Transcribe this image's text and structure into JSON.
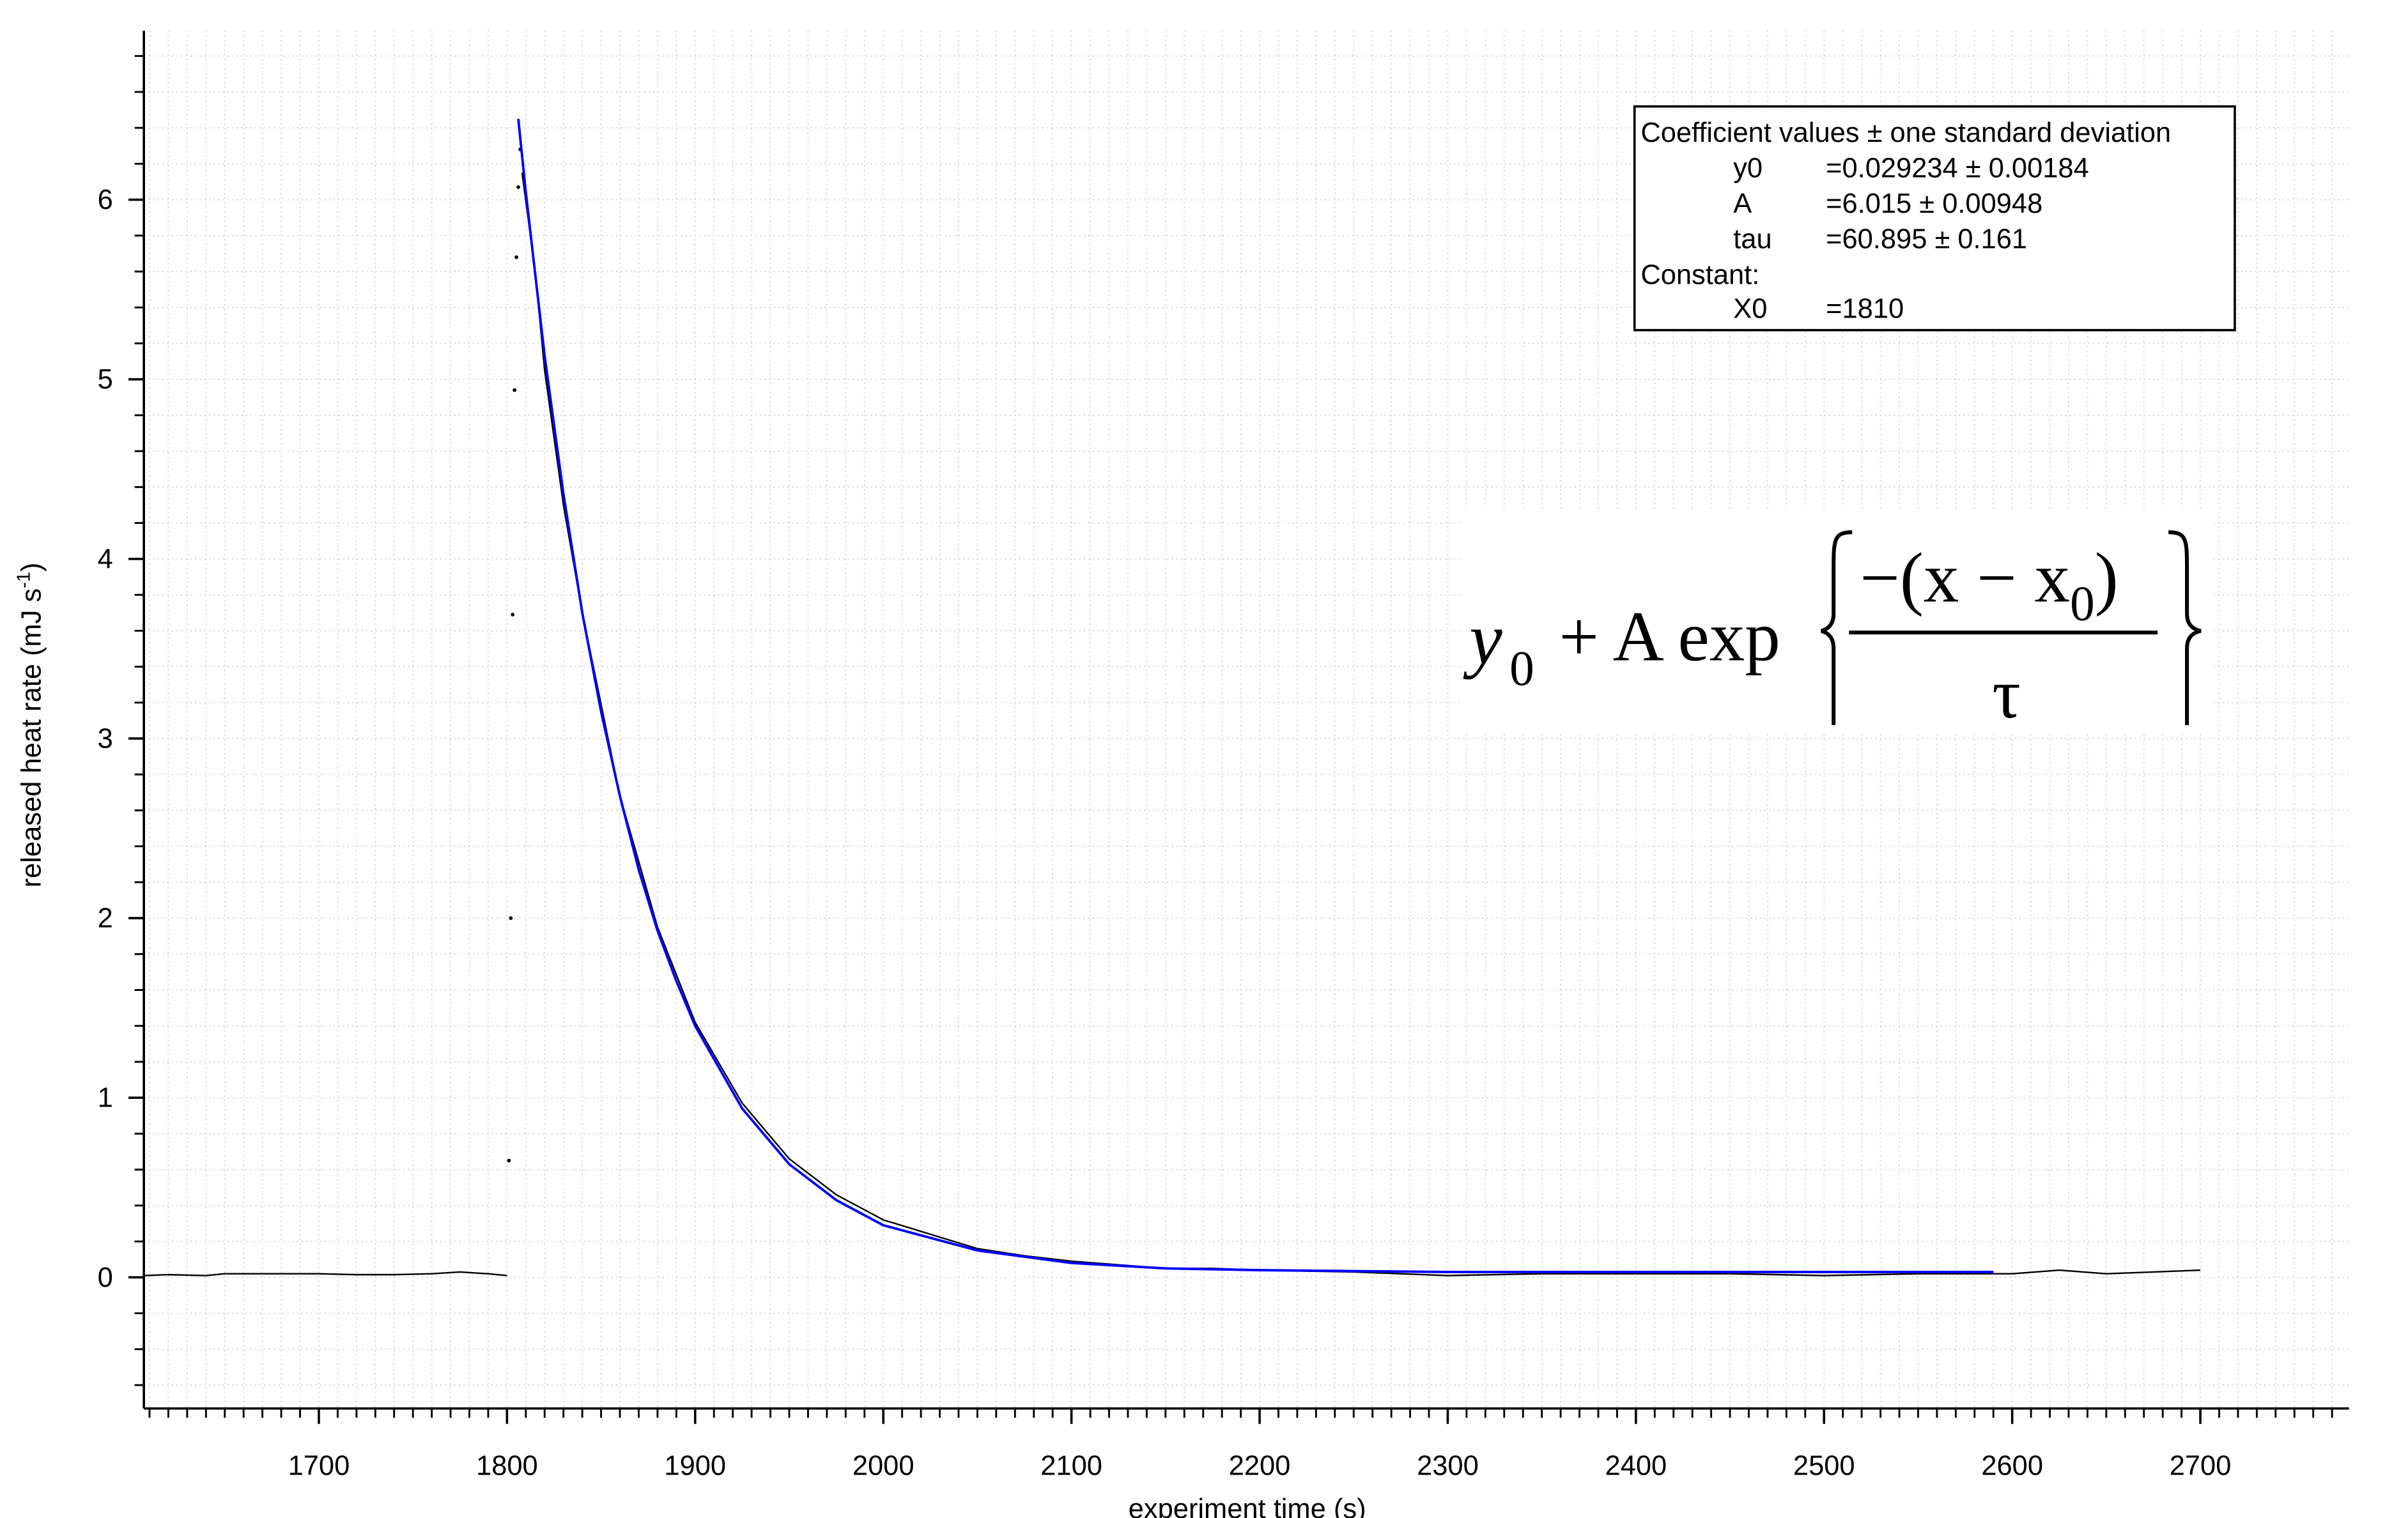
{
  "chart_data": {
    "type": "line",
    "xlabel": "experiment time (s)",
    "ylabel": {
      "text": "released heat rate (mJ s",
      "sup": "-1",
      "close": ")"
    },
    "xlim": [
      1607,
      2779
    ],
    "ylim": [
      -0.73,
      6.94
    ],
    "xticks": [
      1700,
      1800,
      1900,
      2000,
      2100,
      2200,
      2300,
      2400,
      2500,
      2600,
      2700
    ],
    "yticks": [
      0,
      1,
      2,
      3,
      4,
      5,
      6
    ],
    "xminorticks": [
      1610,
      1620,
      1630,
      1640,
      1650,
      1660,
      1670,
      1680,
      1690,
      1700,
      1710,
      1720,
      1730,
      1740,
      1750,
      1760,
      1770,
      1780,
      1790,
      1800,
      1810,
      1820,
      1830,
      1840,
      1850,
      1860,
      1870,
      1880,
      1890,
      1900,
      1910,
      1920,
      1930,
      1940,
      1950,
      1960,
      1970,
      1980,
      1990,
      2000,
      2010,
      2020,
      2030,
      2040,
      2050,
      2060,
      2070,
      2080,
      2090,
      2100,
      2110,
      2120,
      2130,
      2140,
      2150,
      2160,
      2170,
      2180,
      2190,
      2200,
      2210,
      2220,
      2230,
      2240,
      2250,
      2260,
      2270,
      2280,
      2290,
      2300,
      2310,
      2320,
      2330,
      2340,
      2350,
      2360,
      2370,
      2380,
      2390,
      2400,
      2410,
      2420,
      2430,
      2440,
      2450,
      2460,
      2470,
      2480,
      2490,
      2500,
      2510,
      2520,
      2530,
      2540,
      2550,
      2560,
      2570,
      2580,
      2590,
      2600,
      2610,
      2620,
      2630,
      2640,
      2650,
      2660,
      2670,
      2680,
      2690,
      2700,
      2710,
      2720,
      2730,
      2740,
      2750,
      2760,
      2770
    ],
    "yminorticks": [
      -0.6,
      -0.4,
      -0.2,
      0,
      0.2,
      0.4,
      0.6,
      0.8,
      1,
      1.2,
      1.4,
      1.6,
      1.8,
      2,
      2.2,
      2.4,
      2.6,
      2.8,
      3,
      3.2,
      3.4,
      3.6,
      3.8,
      4,
      4.2,
      4.4,
      4.6,
      4.8,
      5,
      5.2,
      5.4,
      5.6,
      5.8,
      6,
      6.2,
      6.4,
      6.6,
      6.8
    ],
    "grid": true,
    "series": [
      {
        "style": "line",
        "color": "#000000",
        "x": [
          1607,
          1620,
          1640,
          1650,
          1660,
          1680,
          1700,
          1720,
          1740,
          1760,
          1775,
          1790,
          1800
        ],
        "values": [
          0.01,
          0.015,
          0.01,
          0.02,
          0.02,
          0.02,
          0.02,
          0.015,
          0.015,
          0.02,
          0.03,
          0.02,
          0.01
        ]
      },
      {
        "style": "dots",
        "color": "#000000",
        "x": [
          1801,
          1802,
          1803,
          1804,
          1805,
          1806,
          1807
        ],
        "values": [
          0.65,
          2.0,
          3.69,
          4.94,
          5.68,
          6.07,
          6.28
        ]
      },
      {
        "style": "line",
        "color": "#000000",
        "x": [
          1808,
          1815,
          1820,
          1830,
          1840,
          1860,
          1880,
          1900,
          1925,
          1950,
          1975,
          2000,
          2025,
          2050,
          2075,
          2100,
          2125,
          2150,
          2175,
          2200,
          2250,
          2300,
          2350,
          2400,
          2450,
          2500,
          2550,
          2600,
          2625,
          2650,
          2675,
          2700
        ],
        "values": [
          6.15,
          5.6,
          5.05,
          4.3,
          3.7,
          2.68,
          1.95,
          1.42,
          0.97,
          0.66,
          0.46,
          0.32,
          0.24,
          0.16,
          0.12,
          0.09,
          0.07,
          0.05,
          0.05,
          0.04,
          0.03,
          0.01,
          0.02,
          0.02,
          0.02,
          0.01,
          0.02,
          0.02,
          0.04,
          0.02,
          0.03,
          0.04
        ]
      },
      {
        "style": "fit",
        "color": "#0000ff",
        "x": [
          1806,
          1810,
          1820,
          1830,
          1840,
          1850,
          1860,
          1870,
          1880,
          1890,
          1900,
          1925,
          1950,
          1975,
          2000,
          2050,
          2100,
          2150,
          2200,
          2300,
          2400,
          2500,
          2590
        ],
        "values": [
          6.45,
          6.04,
          5.13,
          4.36,
          3.7,
          3.15,
          2.68,
          2.27,
          1.93,
          1.65,
          1.4,
          0.94,
          0.63,
          0.43,
          0.29,
          0.15,
          0.08,
          0.05,
          0.04,
          0.03,
          0.03,
          0.03,
          0.03
        ]
      }
    ],
    "annotation": {
      "title": "Coefficient values ± one standard deviation",
      "rows": [
        [
          "y0",
          "=0.029234 ± 0.00184"
        ],
        [
          "A",
          "=6.015 ± 0.00948"
        ],
        [
          "tau",
          "=60.895 ± 0.161"
        ]
      ],
      "constant_label": "Constant:",
      "constants": [
        [
          "X0",
          "=1810"
        ]
      ]
    },
    "formula": {
      "y": "y",
      "y_sub": "0",
      "mid": "+ A exp",
      "num": "−(x − x",
      "num_sub": "0",
      "num_close": ")",
      "den": "τ"
    }
  }
}
